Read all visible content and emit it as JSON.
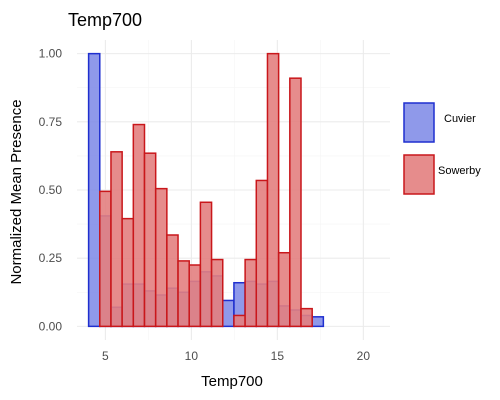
{
  "chart_data": {
    "type": "bar",
    "title": "Temp700",
    "xlabel": "Temp700",
    "ylabel": "Normalized Mean Presence",
    "xlim": [
      3.35,
      21.55
    ],
    "ylim": [
      -0.05,
      1.05
    ],
    "x_ticks": [
      5,
      10,
      15,
      20
    ],
    "x_tick_labels": [
      "5",
      "10",
      "15",
      "20"
    ],
    "y_ticks": [
      0,
      0.25,
      0.5,
      0.75,
      1.0
    ],
    "y_tick_labels": [
      "0.00",
      "0.25",
      "0.50",
      "0.75",
      "1.00"
    ],
    "bar_width": 0.65,
    "grid": true,
    "legend": {
      "position": "right"
    },
    "series": [
      {
        "name": "Cuvier",
        "fill": "#7b87e6",
        "stroke": "#1f2fcf",
        "x": [
          4.35,
          5.0,
          5.65,
          6.3,
          6.95,
          7.6,
          8.25,
          8.9,
          9.55,
          10.2,
          10.85,
          11.5,
          12.15,
          12.8,
          13.45,
          14.1,
          14.75,
          15.4,
          16.05,
          16.7,
          17.35,
          18.0,
          18.65,
          19.3,
          19.95
        ],
        "values": [
          1.0,
          0.405,
          0.07,
          0.155,
          0.155,
          0.13,
          0.115,
          0.14,
          0.125,
          0.165,
          0.2,
          0.185,
          0.095,
          0.16,
          0.165,
          0.155,
          0.165,
          0.075,
          0.06,
          0.04,
          0.035,
          0.0,
          0.0,
          0.0,
          0.0
        ]
      },
      {
        "name": "Sowerby",
        "fill": "#e37f80",
        "stroke": "#c9171b",
        "x": [
          5.0,
          5.65,
          6.3,
          6.95,
          7.6,
          8.25,
          8.9,
          9.55,
          10.2,
          10.85,
          11.5,
          12.15,
          12.8,
          13.45,
          14.1,
          14.75,
          15.4,
          16.05,
          16.7,
          17.35,
          18.0,
          18.65,
          19.3,
          19.95,
          20.6
        ],
        "values": [
          0.495,
          0.64,
          0.395,
          0.74,
          0.635,
          0.505,
          0.335,
          0.24,
          0.225,
          0.455,
          0.245,
          0.0,
          0.04,
          0.245,
          0.535,
          1.0,
          0.27,
          0.91,
          0.065,
          0.0,
          0.0,
          0.0,
          0.0,
          0.0,
          0.0
        ]
      }
    ]
  }
}
